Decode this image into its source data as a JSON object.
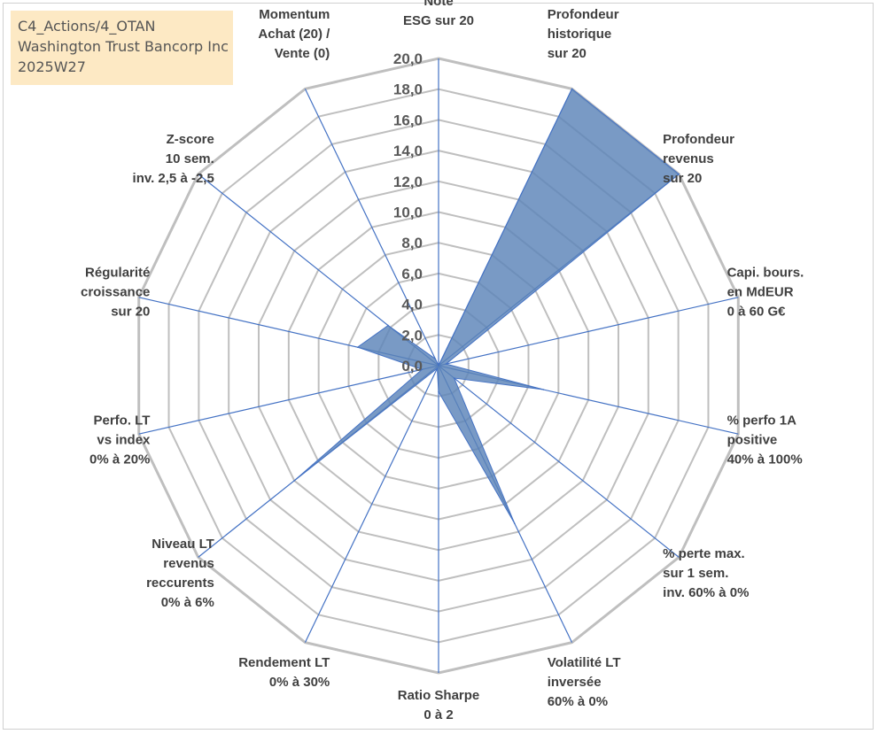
{
  "title_box": {
    "line1": "C4_Actions/4_OTAN",
    "line2": "Washington Trust Bancorp Inc",
    "line3": "2025W27"
  },
  "colors": {
    "grid": "#bfbfbf",
    "spokes": "#4472c4",
    "fill": "#5b84b8",
    "title_bg": "#fde9c4"
  },
  "chart_data": {
    "type": "radar",
    "rlim": [
      0,
      20
    ],
    "tick_step": 2,
    "tick_labels": [
      "0,0",
      "2,0",
      "4,0",
      "6,0",
      "8,0",
      "10,0",
      "12,0",
      "14,0",
      "16,0",
      "18,0",
      "20,0"
    ],
    "grid": true,
    "axes": [
      {
        "label": [
          "Note",
          "ESG sur 20"
        ]
      },
      {
        "label": [
          "Profondeur",
          "historique",
          "sur 20"
        ]
      },
      {
        "label": [
          "Profondeur",
          "revenus",
          "sur 20"
        ]
      },
      {
        "label": [
          "Capi. bours.",
          "en MdEUR",
          "0 à 60 G€"
        ]
      },
      {
        "label": [
          "% perfo 1A",
          "positive",
          "40% à 100%"
        ]
      },
      {
        "label": [
          "% perte max.",
          "sur 1 sem.",
          "inv. 60% à 0%"
        ]
      },
      {
        "label": [
          "Volatilité LT",
          "inversée",
          "60% à 0%"
        ]
      },
      {
        "label": [
          "Ratio Sharpe",
          "0 à 2"
        ]
      },
      {
        "label": [
          "Rendement LT",
          "0% à 30%"
        ]
      },
      {
        "label": [
          "Niveau LT",
          "revenus",
          "reccurents",
          "0% à 6%"
        ]
      },
      {
        "label": [
          "Perfo. LT",
          "vs index",
          "0% à 20%"
        ]
      },
      {
        "label": [
          "Régularité",
          "croissance",
          "sur 20"
        ]
      },
      {
        "label": [
          "Z-score",
          "10 sem.",
          "inv. 2,5 à -2,5"
        ]
      },
      {
        "label": [
          "Momentum",
          "Achat (20) /",
          "Vente (0)"
        ]
      }
    ],
    "series": [
      {
        "values": [
          0.0,
          20.0,
          20.0,
          0.5,
          7.0,
          1.3,
          11.4,
          1.7,
          0.2,
          12.0,
          1.1,
          5.4,
          4.2,
          0.5
        ]
      }
    ]
  }
}
